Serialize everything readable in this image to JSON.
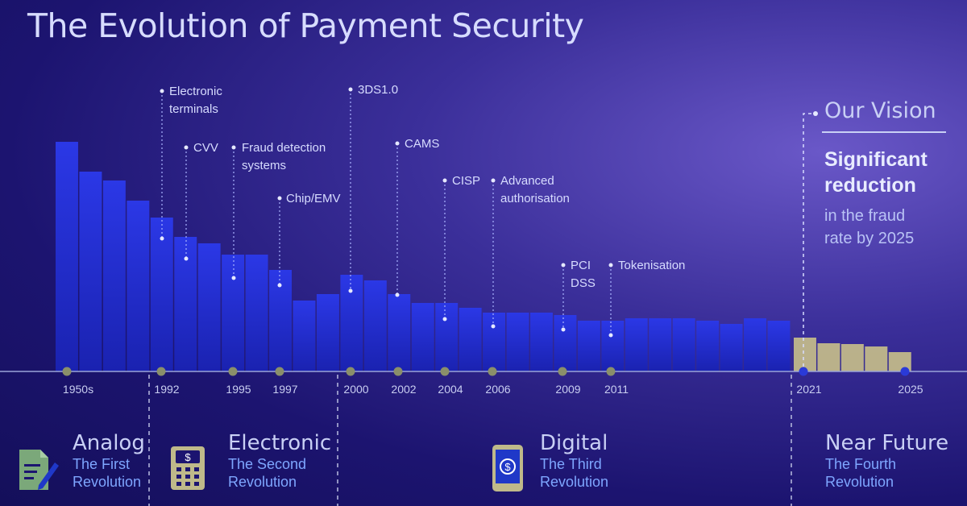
{
  "title": "The Evolution of Payment Security",
  "chart_data": {
    "type": "bar",
    "title": "The Evolution of Payment Security",
    "values": [
      285,
      248,
      237,
      212,
      191,
      167,
      159,
      145,
      145,
      126,
      88,
      96,
      120,
      113,
      96,
      85,
      85,
      79,
      73,
      73,
      73,
      70,
      63,
      63,
      66,
      66,
      66,
      63,
      59,
      66,
      63
    ],
    "projection_values": [
      42,
      35,
      34,
      31,
      24
    ],
    "tick_labels": [
      "1950s",
      "1992",
      "1995",
      "1997",
      "2000",
      "2002",
      "2004",
      "2006",
      "2009",
      "2011",
      "2021",
      "2025"
    ],
    "annotations": [
      {
        "lines": [
          "Electronic",
          "terminals"
        ]
      },
      {
        "lines": [
          "CVV"
        ]
      },
      {
        "lines": [
          "Fraud detection",
          "systems"
        ]
      },
      {
        "lines": [
          "Chip/EMV"
        ]
      },
      {
        "lines": [
          "3DS1.0"
        ]
      },
      {
        "lines": [
          "CAMS"
        ]
      },
      {
        "lines": [
          "CISP"
        ]
      },
      {
        "lines": [
          "Advanced",
          "authorisation"
        ]
      },
      {
        "lines": [
          "PCI",
          "DSS"
        ]
      },
      {
        "lines": [
          "Tokenisation"
        ]
      }
    ],
    "colors": {
      "historic": "#2430d8",
      "projection": "#c9c08a",
      "axis": "#9aa4d8"
    }
  },
  "vision": {
    "heading": "Our Vision",
    "bold_lines": [
      "Significant",
      "reduction"
    ],
    "text_lines": [
      "in the fraud",
      "rate by 2025"
    ]
  },
  "eras": [
    {
      "name": "Analog",
      "sub": [
        "The First",
        "Revolution"
      ],
      "icon": "document-pen-icon"
    },
    {
      "name": "Electronic",
      "sub": [
        "The Second",
        "Revolution"
      ],
      "icon": "payment-terminal-icon"
    },
    {
      "name": "Digital",
      "sub": [
        "The Third",
        "Revolution"
      ],
      "icon": "smartphone-payment-icon"
    },
    {
      "name": "Near Future",
      "sub": [
        "The Fourth",
        "Revolution"
      ],
      "icon": ""
    }
  ]
}
